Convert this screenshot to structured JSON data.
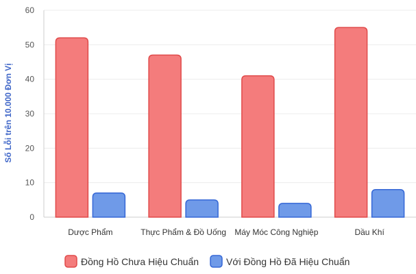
{
  "chart_data": {
    "type": "bar",
    "title": "",
    "xlabel": "",
    "ylabel": "Số Lỗi trên 10.000 Đơn Vị",
    "ylim": [
      0,
      60
    ],
    "yticks": [
      0,
      10,
      20,
      30,
      40,
      50,
      60
    ],
    "grid": true,
    "legend_position": "bottom",
    "categories": [
      "Dược Phẩm",
      "Thực Phẩm & Đồ Uống",
      "Máy Móc Công Nghiệp",
      "Dầu Khí"
    ],
    "series": [
      {
        "name": "Đồng Hồ Chưa Hiệu Chuẩn",
        "values": [
          52,
          47,
          41,
          55
        ],
        "color": "#f47c7c",
        "border": "#e04a4a"
      },
      {
        "name": "Với Đồng Hồ Đã Hiệu Chuẩn",
        "values": [
          7,
          5,
          4,
          8
        ],
        "color": "#6f9ae8",
        "border": "#3567d6"
      }
    ],
    "ylabel_color": "#3f66c8",
    "grid_color": "#ececec",
    "axis_color": "#cccccc"
  }
}
